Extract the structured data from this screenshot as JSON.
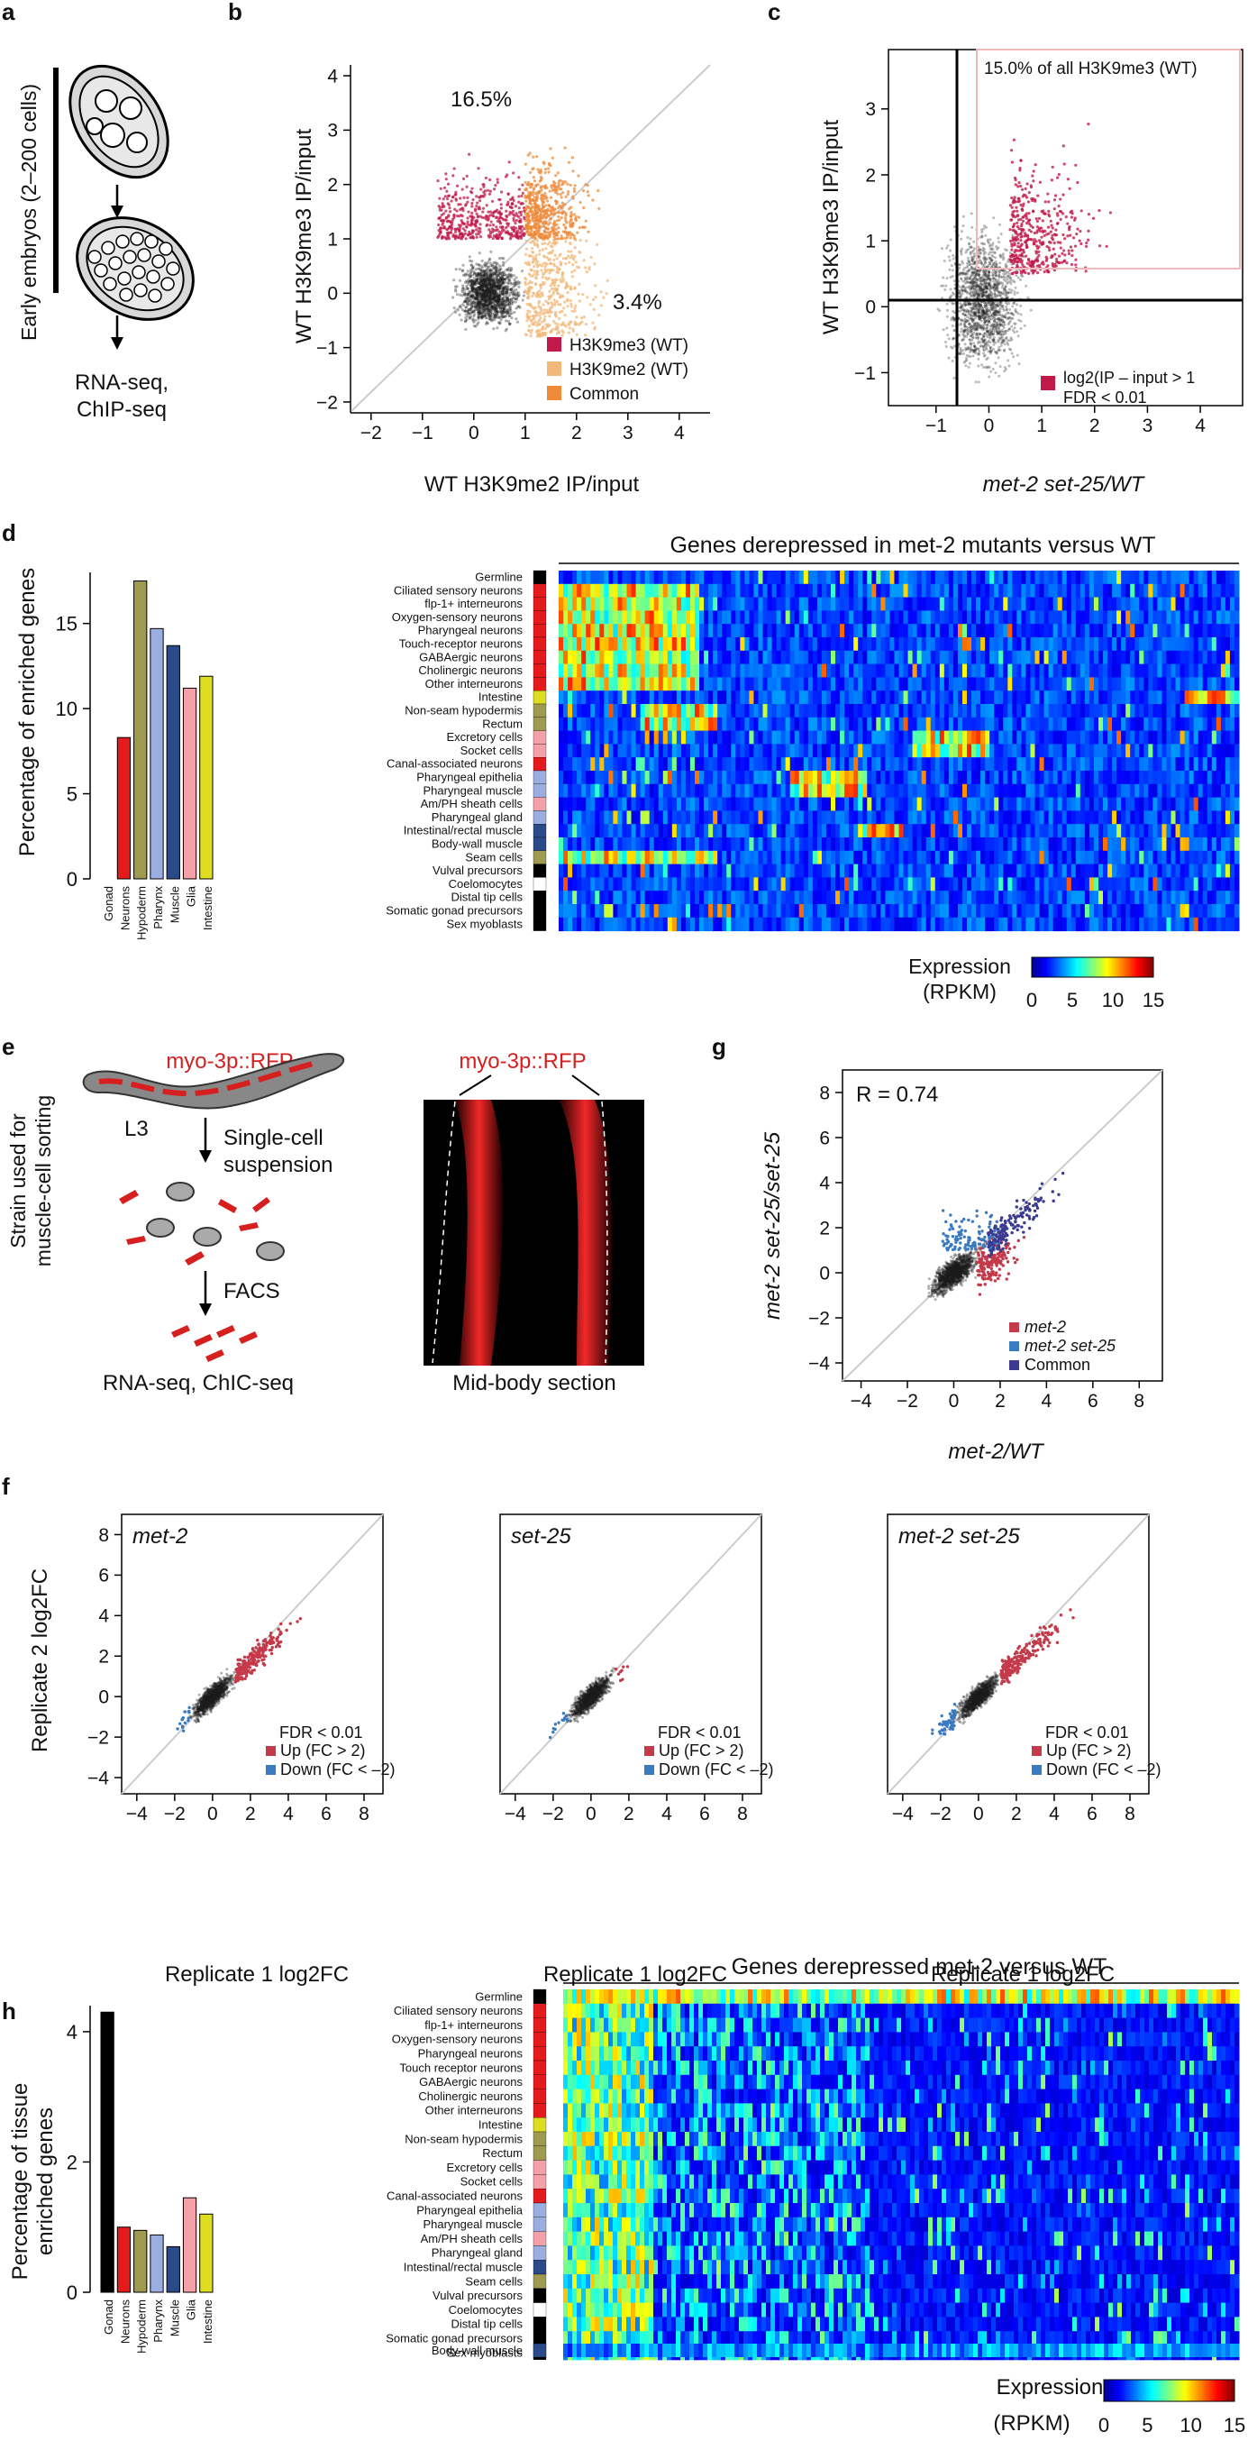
{
  "panels": {
    "a": "a",
    "b": "b",
    "c": "c",
    "d": "d",
    "e": "e",
    "f": "f",
    "g": "g",
    "h": "h"
  },
  "panel_a": {
    "side_label": "Early embryos (2–200 cells)",
    "output_label_1": "RNA-seq,",
    "output_label_2": "ChIP-seq"
  },
  "panel_e": {
    "strain_label_1": "Strain used for",
    "strain_label_2": "muscle-cell sorting",
    "reporter": "myo-3p::RFP",
    "stage": "L3",
    "step1_a": "Single-cell",
    "step1_b": "suspension",
    "step2": "FACS",
    "output": "RNA-seq, ChIC-seq",
    "micrograph_title": "myo-3p::RFP",
    "micrograph_caption": "Mid-body section"
  },
  "chart_data": [
    {
      "id": "b",
      "type": "scatter",
      "xlabel": "WT H3K9me2 IP/input",
      "ylabel": "WT H3K9me3 IP/input",
      "xlim": [
        -2.4,
        4.6
      ],
      "ylim": [
        -2.2,
        4.2
      ],
      "xticks": [
        "-2",
        "-1",
        "0",
        "1",
        "2",
        "3",
        "4"
      ],
      "yticks": [
        "-2",
        "-1",
        "0",
        "1",
        "2",
        "3",
        "4"
      ],
      "annotations": [
        "16.5%",
        "3.4%"
      ],
      "legend": [
        {
          "label": "H3K9me3 (WT)",
          "color": "#c0194a"
        },
        {
          "label": "H3K9me2 (WT)",
          "color": "#f2b87a"
        },
        {
          "label": "Common",
          "color": "#ee8a3a"
        }
      ],
      "thresholds": {
        "x": 1,
        "y": 1
      }
    },
    {
      "id": "c",
      "type": "scatter",
      "xlabel": "met-2 set-25/WT",
      "ylabel": "WT H3K9me3 IP/input",
      "xlim": [
        -1.9,
        4.8
      ],
      "ylim": [
        -1.5,
        3.9
      ],
      "xticks": [
        "-1",
        "0",
        "1",
        "2",
        "3",
        "4"
      ],
      "yticks": [
        "-1",
        "0",
        "1",
        "2",
        "3"
      ],
      "annotations": [
        "15.0% of all H3K9me3 (WT)"
      ],
      "legend": [
        {
          "label_1": "log2(IP – input > 1",
          "label_2": "FDR < 0.01",
          "color": "#c0194a"
        }
      ]
    },
    {
      "id": "d",
      "type": "bar",
      "ylabel": "Percentage of enriched genes",
      "categories": [
        "Gonad",
        "Neurons",
        "Hypoderm",
        "Pharynx",
        "Muscle",
        "Glia",
        "Intestine"
      ],
      "values": [
        0,
        8.3,
        17.5,
        14.7,
        13.7,
        11.2,
        11.9
      ],
      "colors": [
        "#000000",
        "#e41a1c",
        "#9e9a50",
        "#9aaee0",
        "#2a4a8a",
        "#f4a0a8",
        "#dddd22"
      ],
      "ylim": [
        0,
        18
      ],
      "yticks": [
        "0",
        "5",
        "10",
        "15"
      ]
    },
    {
      "id": "d-heatmap",
      "type": "heatmap",
      "title": "Genes derepressed in met-2 mutants versus WT",
      "rows": [
        "Germline",
        "Ciliated sensory neurons",
        "flp-1+ interneurons",
        "Oxygen-sensory neurons",
        "Pharyngeal neurons",
        "Touch-receptor neurons",
        "GABAergic neurons",
        "Cholinergic neurons",
        "Other interneurons",
        "Intestine",
        "Non-seam hypodermis",
        "Rectum",
        "Excretory cells",
        "Socket cells",
        "Canal-associated neurons",
        "Pharyngeal epithelia",
        "Pharyngeal muscle",
        "Am/PH sheath cells",
        "Pharyngeal gland",
        "Intestinal/rectal muscle",
        "Body-wall muscle",
        "Seam cells",
        "Vulval precursors",
        "Coelomocytes",
        "Distal tip cells",
        "Somatic gonad precursors",
        "Sex myoblasts"
      ],
      "colorbar_label_1": "Expression",
      "colorbar_label_2": "(RPKM)",
      "colorbar_ticks": [
        "0",
        "5",
        "10",
        "15"
      ]
    },
    {
      "id": "g",
      "type": "scatter",
      "xlabel": "met-2/WT",
      "ylabel": "met-2 set-25/set-25",
      "xlim": [
        -4.8,
        9
      ],
      "ylim": [
        -4.8,
        9
      ],
      "xticks": [
        "-4",
        "-2",
        "0",
        "2",
        "4",
        "6",
        "8"
      ],
      "yticks": [
        "-4",
        "-2",
        "0",
        "2",
        "4",
        "6",
        "8"
      ],
      "annotation": "R = 0.74",
      "legend": [
        {
          "label": "met-2",
          "color": "#c43a4a"
        },
        {
          "label": "met-2 set-25",
          "color": "#3a7ac0"
        },
        {
          "label": "Common",
          "color": "#3a3a90"
        }
      ]
    },
    {
      "id": "f",
      "type": "scatter",
      "ylabel": "Replicate 2 log2FC",
      "xlabel": "Replicate 1 log2FC",
      "xlim": [
        -4.8,
        9
      ],
      "ylim": [
        -4.8,
        9
      ],
      "xticks": [
        "-4",
        "-2",
        "0",
        "2",
        "4",
        "6",
        "8"
      ],
      "yticks": [
        "-4",
        "-2",
        "0",
        "2",
        "4",
        "6",
        "8"
      ],
      "subplots": [
        "met-2",
        "set-25",
        "met-2 set-25"
      ],
      "legend_title": "FDR < 0.01",
      "legend": [
        {
          "label": "Up (FC > 2)",
          "color": "#c43a4a"
        },
        {
          "label": "Down (FC < –2)",
          "color": "#3a7ac0"
        }
      ]
    },
    {
      "id": "h",
      "type": "bar",
      "ylabel": "Percentage of tissue enriched genes",
      "categories": [
        "Gonad",
        "Neurons",
        "Hypoderm",
        "Pharynx",
        "Muscle",
        "Glia",
        "Intestine"
      ],
      "values": [
        4.3,
        1.0,
        0.95,
        0.88,
        0.7,
        1.45,
        1.2
      ],
      "colors": [
        "#000000",
        "#e41a1c",
        "#9e9a50",
        "#9aaee0",
        "#2a4a8a",
        "#f4a0a8",
        "#dddd22"
      ],
      "ylim": [
        0,
        4.4
      ],
      "yticks": [
        "0",
        "2",
        "4"
      ]
    },
    {
      "id": "h-heatmap",
      "type": "heatmap",
      "title": "Genes derepressed met-2 versus WT",
      "rows": [
        "Germline",
        "Ciliated sensory neurons",
        "flp-1+ interneurons",
        "Oxygen-sensory neurons",
        "Pharyngeal neurons",
        "Touch receptor neurons",
        "GABAergic neurons",
        "Cholinergic neurons",
        "Other interneurons",
        "Intestine",
        "Non-seam hypodermis",
        "Rectum",
        "Excretory cells",
        "Socket cells",
        "Canal-associated neurons",
        "Pharyngeal epithelia",
        "Pharyngeal muscle",
        "Am/PH sheath cells",
        "Pharyngeal gland",
        "Intestinal/rectal muscle",
        "Seam cells",
        "Vulval precursors",
        "Coelomocytes",
        "Distal tip cells",
        "Somatic gonad precursors",
        "Sex myoblasts"
      ],
      "extra_row": "Body-wall muscle",
      "colorbar_label_1": "Expression",
      "colorbar_label_2": "(RPKM)",
      "colorbar_ticks": [
        "0",
        "5",
        "10",
        "15"
      ]
    }
  ]
}
